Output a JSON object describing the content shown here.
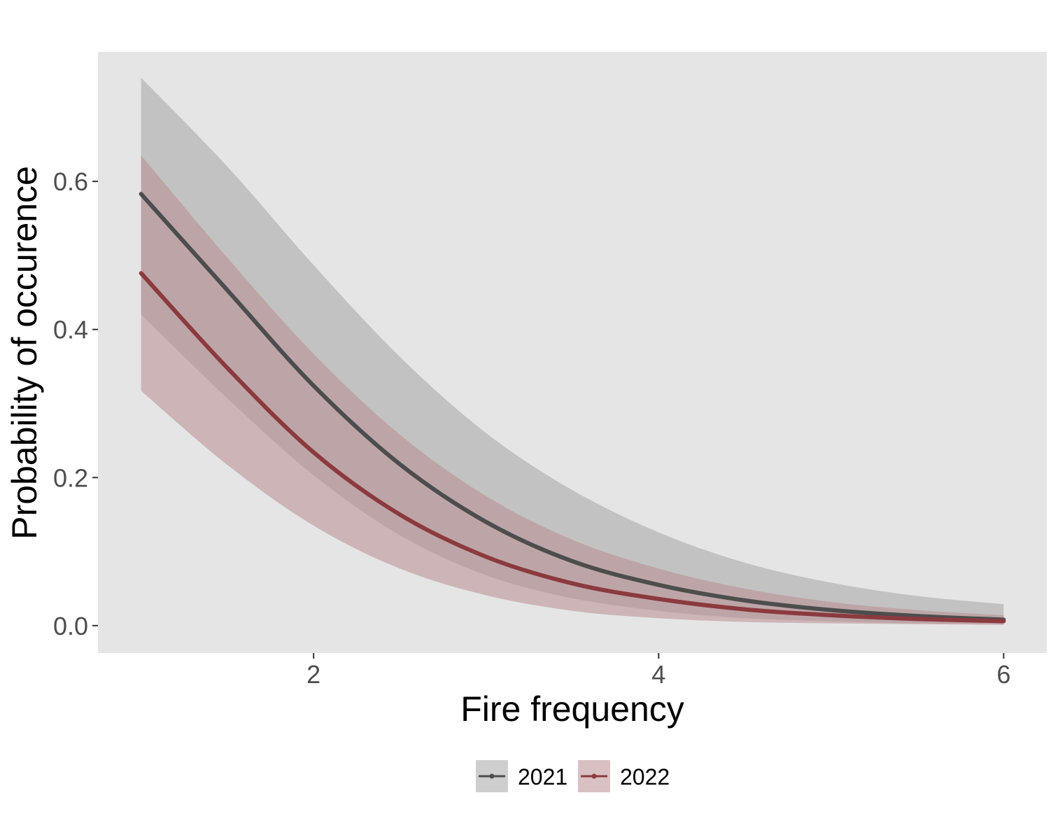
{
  "chart_data": {
    "type": "line",
    "xlabel": "Fire frequency",
    "ylabel": "Probability of occurence",
    "xlim": [
      0.75,
      6.25
    ],
    "ylim": [
      -0.037,
      0.775
    ],
    "x_ticks": [
      {
        "value": 2,
        "label": "2"
      },
      {
        "value": 4,
        "label": "4"
      },
      {
        "value": 6,
        "label": "6"
      }
    ],
    "y_ticks": [
      {
        "value": 0.0,
        "label": "0.0"
      },
      {
        "value": 0.2,
        "label": "0.2"
      },
      {
        "value": 0.4,
        "label": "0.4"
      },
      {
        "value": 0.6,
        "label": "0.6"
      }
    ],
    "grid": false,
    "legend_position": "bottom",
    "background": "#e5e5e5",
    "series": [
      {
        "name": "2021",
        "color": "#4d4d4d",
        "ribbon_color": "#a6a6a6",
        "x": [
          1.0,
          1.5,
          2.0,
          2.5,
          3.0,
          3.5,
          4.0,
          4.5,
          5.0,
          5.5,
          6.0
        ],
        "y": [
          0.583,
          0.453,
          0.324,
          0.218,
          0.14,
          0.087,
          0.055,
          0.034,
          0.021,
          0.013,
          0.008
        ],
        "lower": [
          0.42,
          0.307,
          0.203,
          0.122,
          0.068,
          0.037,
          0.02,
          0.01,
          0.006,
          0.003,
          0.002
        ],
        "upper": [
          0.74,
          0.62,
          0.487,
          0.363,
          0.26,
          0.183,
          0.126,
          0.085,
          0.058,
          0.04,
          0.029
        ]
      },
      {
        "name": "2022",
        "color": "#8b3a3f",
        "ribbon_color": "#b98e92",
        "x": [
          1.0,
          1.5,
          2.0,
          2.5,
          3.0,
          3.5,
          4.0,
          4.5,
          5.0,
          5.5,
          6.0
        ],
        "y": [
          0.476,
          0.348,
          0.234,
          0.15,
          0.093,
          0.057,
          0.036,
          0.022,
          0.014,
          0.009,
          0.006
        ],
        "lower": [
          0.317,
          0.217,
          0.135,
          0.077,
          0.041,
          0.02,
          0.01,
          0.005,
          0.003,
          0.002,
          0.001
        ],
        "upper": [
          0.635,
          0.497,
          0.367,
          0.258,
          0.175,
          0.116,
          0.077,
          0.05,
          0.032,
          0.021,
          0.014
        ]
      }
    ]
  }
}
